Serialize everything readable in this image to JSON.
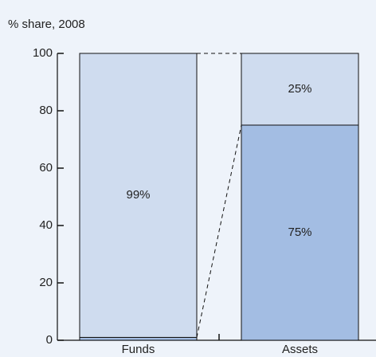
{
  "chart_data": {
    "type": "stacked_bar",
    "title": "% share, 2008",
    "categories": [
      "Funds",
      "Assets"
    ],
    "series": [
      {
        "color": "#a3bde3",
        "values": [
          1,
          75
        ],
        "value_labels": [
          "1%",
          "75%"
        ]
      },
      {
        "color": "#cfdcef",
        "values": [
          99,
          25
        ],
        "value_labels": [
          "99%",
          "25%"
        ]
      }
    ],
    "ylim": [
      0,
      100
    ],
    "yticks": [
      0,
      20,
      40,
      60,
      80,
      100
    ]
  }
}
